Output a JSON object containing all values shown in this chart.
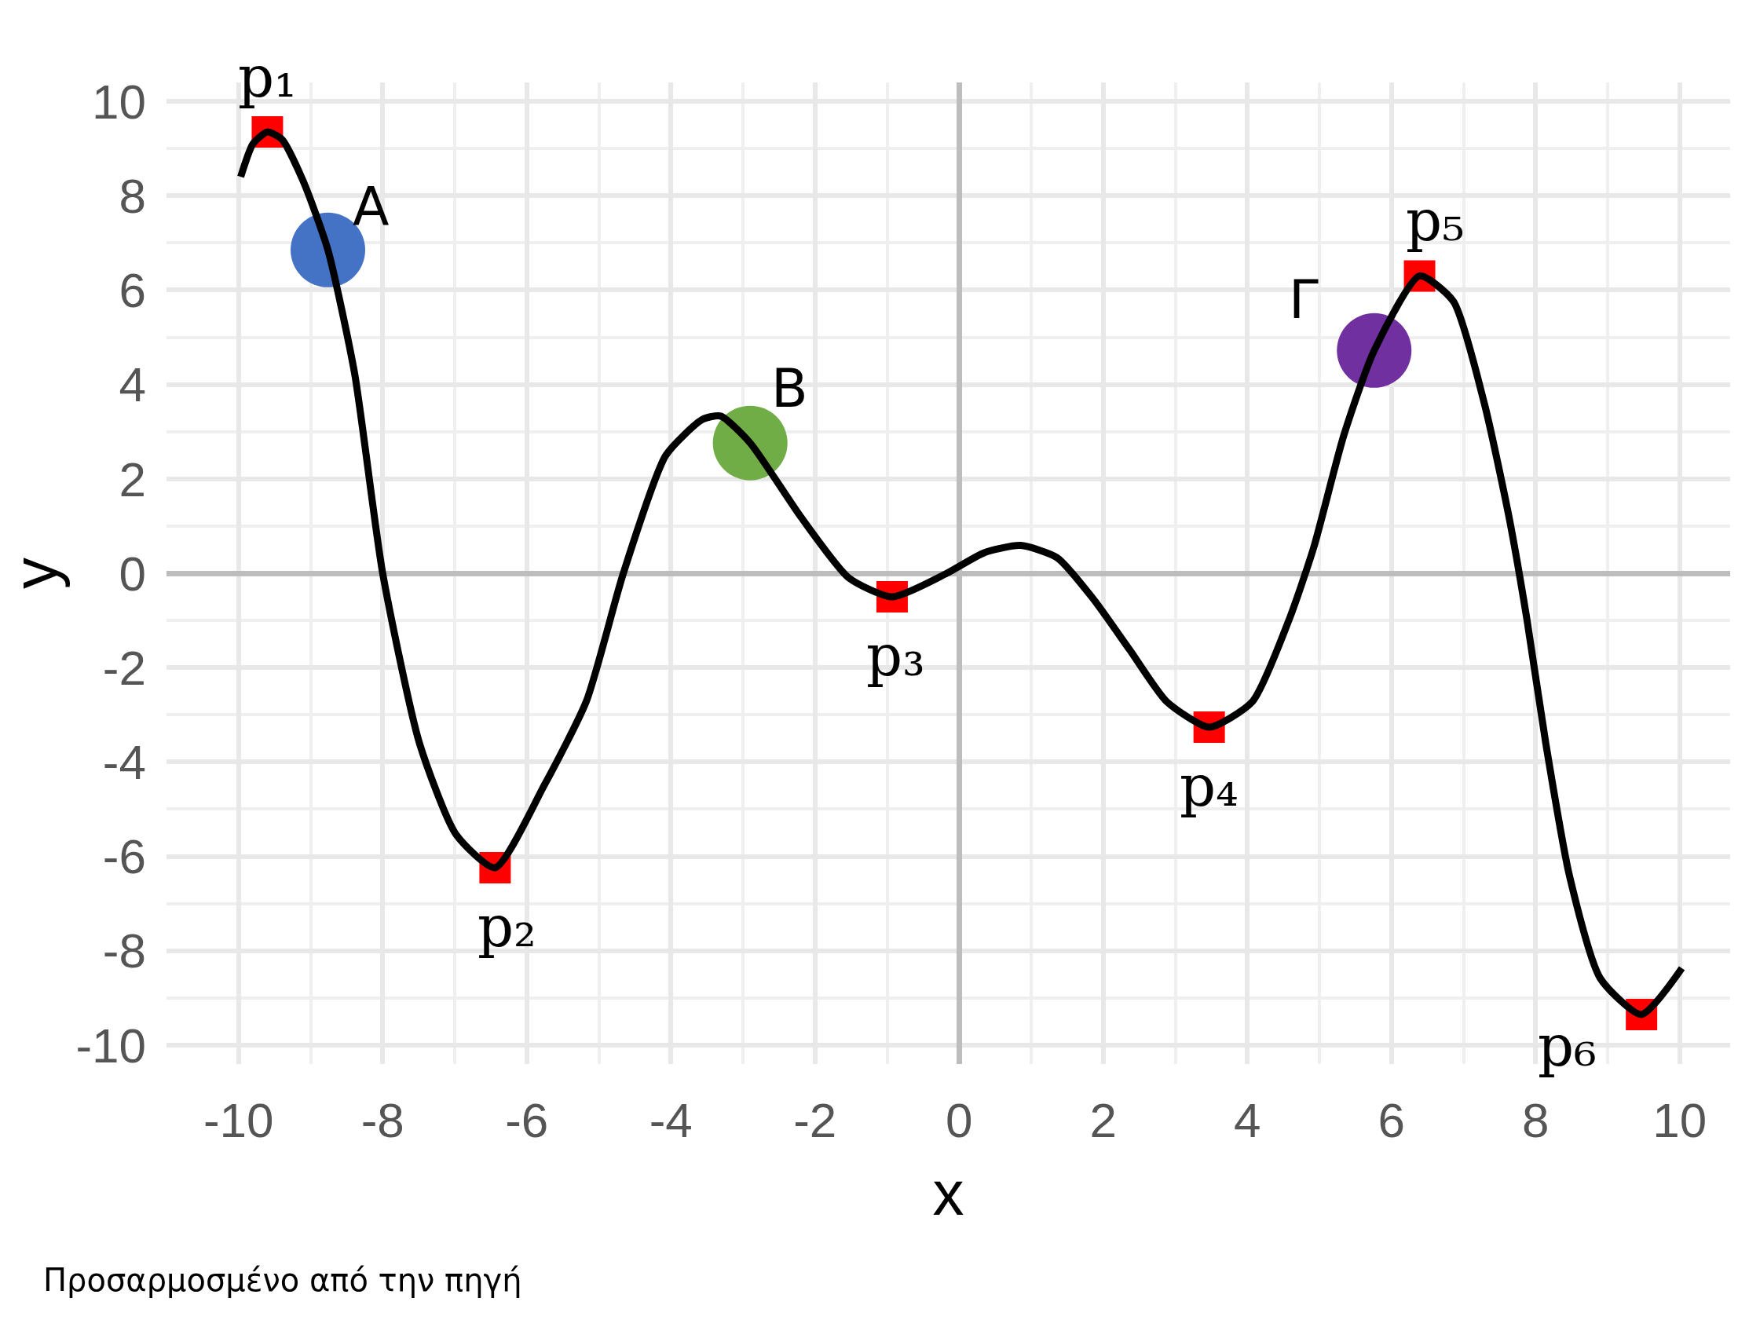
{
  "chart_data": {
    "type": "line",
    "xlabel": "x",
    "ylabel": "y",
    "xlim": [
      -11,
      10.7
    ],
    "ylim": [
      -10.4,
      10.4
    ],
    "xticks": [
      -10,
      -8,
      -6,
      -4,
      -2,
      0,
      2,
      4,
      6,
      8,
      10
    ],
    "yticks": [
      -10,
      -8,
      -6,
      -4,
      -2,
      0,
      2,
      4,
      6,
      8,
      10
    ],
    "grid": true,
    "series": [
      {
        "color": "#000000",
        "marker": "none",
        "line_style": "solid",
        "x": [
          -9.97,
          -9.8,
          -9.6,
          -9.4,
          -9.1,
          -8.76,
          -8.39,
          -8.0,
          -7.49,
          -6.98,
          -6.44,
          -5.76,
          -5.17,
          -4.66,
          -4.07,
          -3.56,
          -3.31,
          -2.9,
          -2.2,
          -1.53,
          -0.93,
          -0.17,
          0.34,
          0.85,
          1.36,
          1.86,
          2.37,
          2.88,
          3.47,
          4.07,
          4.58,
          4.92,
          5.34,
          5.76,
          6.39,
          6.86,
          7.29,
          7.63,
          7.88,
          8.14,
          8.47,
          8.9,
          9.47,
          10.03
        ],
        "values": [
          8.4,
          9.1,
          9.35,
          9.2,
          8.3,
          6.85,
          4.24,
          0.0,
          -3.6,
          -5.54,
          -6.24,
          -4.5,
          -2.7,
          0.0,
          2.5,
          3.26,
          3.33,
          2.76,
          1.2,
          -0.1,
          -0.5,
          0.0,
          0.43,
          0.59,
          0.33,
          -0.54,
          -1.63,
          -2.72,
          -3.26,
          -2.72,
          -0.98,
          0.54,
          2.93,
          4.72,
          6.3,
          5.76,
          3.59,
          1.2,
          -0.98,
          -3.59,
          -6.41,
          -8.59,
          -9.35,
          -8.37
        ]
      },
      {
        "type": "scatter",
        "color": "#ff0000",
        "marker": "square",
        "x": [
          -9.6,
          -6.44,
          -0.93,
          3.47,
          6.39,
          9.47
        ],
        "values": [
          9.35,
          -6.24,
          -0.5,
          -3.26,
          6.3,
          -9.35
        ],
        "value_labels": [
          "p₁",
          "p₂",
          "p₃",
          "p₄",
          "p₅",
          "p₆"
        ]
      },
      {
        "type": "scatter",
        "marker": "circle",
        "colors": [
          "#4472c4",
          "#70ad47",
          "#7030a0"
        ],
        "x": [
          -8.76,
          -2.9,
          5.76
        ],
        "values": [
          6.85,
          2.76,
          4.72
        ],
        "value_labels": [
          "A",
          "B",
          "Γ"
        ]
      }
    ],
    "annotations": [
      "Προσαρμοσμένο από την πηγή"
    ]
  }
}
